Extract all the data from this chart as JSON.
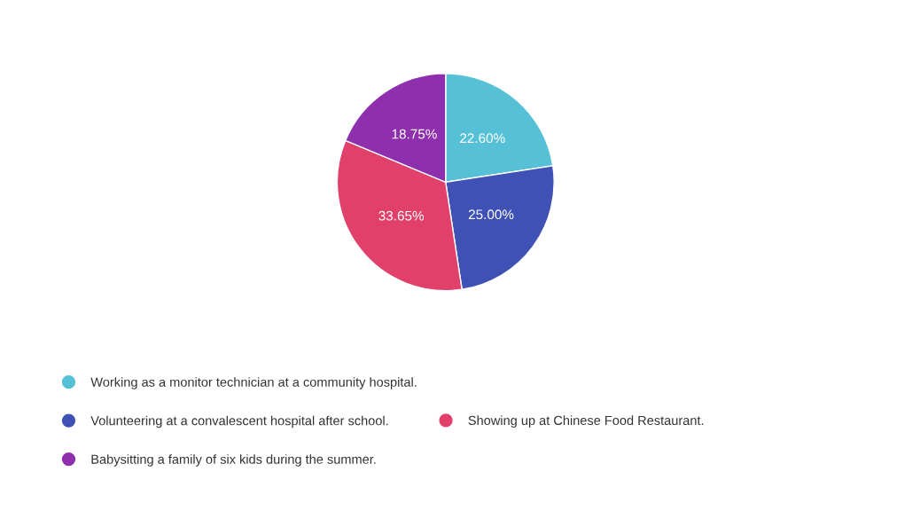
{
  "chart_data": {
    "type": "pie",
    "categories": [
      "Working as a monitor technician at a community hospital.",
      "Volunteering at a convalescent hospital after school.",
      "Showing up at Chinese Food Restaurant.",
      "Babysitting a family of six kids during the summer."
    ],
    "values": [
      22.6,
      25.0,
      33.65,
      18.75
    ],
    "value_labels": [
      "22.60%",
      "25.00%",
      "33.65%",
      "18.75%"
    ],
    "colors": [
      "#56c1d6",
      "#3f51b5",
      "#e0406a",
      "#8e2fad"
    ],
    "legend": "bottom"
  }
}
